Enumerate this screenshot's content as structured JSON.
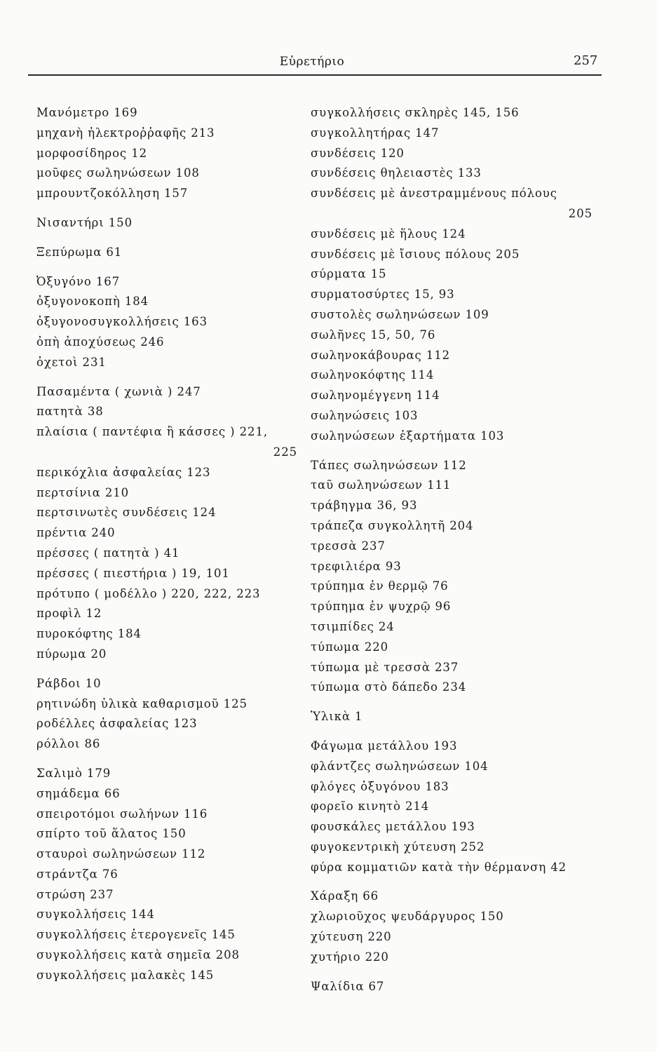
{
  "header": {
    "title": "Εὑρετήριο",
    "page_number": "257"
  },
  "left": [
    {
      "entries": [
        {
          "text": "Μανόμετρο 169"
        },
        {
          "text": "μηχανὴ ἠλεκτροῤῥαφῆς 213"
        },
        {
          "text": "μορφοσίδηρος 12"
        },
        {
          "text": "μοῦφες σωληνώσεων 108"
        },
        {
          "text": "μπρουντζοκόλληση 157"
        }
      ]
    },
    {
      "entries": [
        {
          "text": "Νισαντήρι 150"
        }
      ]
    },
    {
      "entries": [
        {
          "text": "Ξεπύρωμα 61"
        }
      ]
    },
    {
      "entries": [
        {
          "text": "Ὀξυγόνο 167"
        },
        {
          "text": "ὀξυγονοκοπὴ 184"
        },
        {
          "text": "ὀξυγονοσυγκολλήσεις 163"
        },
        {
          "text": "ὀπὴ ἀποχύσεως 246"
        },
        {
          "text": "ὀχετοὶ 231"
        }
      ]
    },
    {
      "entries": [
        {
          "text": "Πασαμέντα ( χωνιὰ ) 247"
        },
        {
          "text": "πατητὰ 38"
        },
        {
          "text": "πλαίσια ( παντέφια ἢ κάσσες ) 221,",
          "wrap": "225"
        },
        {
          "text": "περικόχλια ἀσφαλείας 123"
        },
        {
          "text": "περτσίνια 210"
        },
        {
          "text": "περτσινωτὲς συνδέσεις 124"
        },
        {
          "text": "πρέντια 240"
        },
        {
          "text": "πρέσσες ( πατητὰ ) 41"
        },
        {
          "text": "πρέσσες ( πιεστήρια ) 19, 101"
        },
        {
          "text": "πρότυπο ( μοδέλλο ) 220, 222, 223"
        },
        {
          "text": "προφὶλ 12"
        },
        {
          "text": "πυροκόφτης 184"
        },
        {
          "text": "πύρωμα 20"
        }
      ]
    },
    {
      "entries": [
        {
          "text": "Ράβδοι 10"
        },
        {
          "text": "ρητινώδη ὑλικὰ καθαρισμοῦ 125"
        },
        {
          "text": "ροδέλλες ἀσφαλείας 123"
        },
        {
          "text": "ρόλλοι 86"
        }
      ]
    },
    {
      "entries": [
        {
          "text": "Σαλιμὸ 179"
        },
        {
          "text": "σημάδεμα 66"
        },
        {
          "text": "σπειροτόμοι σωλήνων 116"
        },
        {
          "text": "σπίρτο τοῦ ἅλατος 150"
        },
        {
          "text": "σταυροὶ σωληνώσεων 112"
        },
        {
          "text": "στράντζα 76"
        },
        {
          "text": "στρώση 237"
        },
        {
          "text": "συγκολλήσεις 144"
        },
        {
          "text": "συγκολλήσεις ἑτερογενεῖς 145"
        },
        {
          "text": "συγκολλήσεις κατὰ σημεῖα 208"
        },
        {
          "text": "συγκολλήσεις μαλακὲς 145"
        }
      ]
    }
  ],
  "right": [
    {
      "entries": [
        {
          "text": "συγκολλήσεις σκληρὲς 145, 156"
        },
        {
          "text": "συγκολλητήρας 147"
        },
        {
          "text": "συνδέσεις 120"
        },
        {
          "text": "συνδέσεις θηλειαστὲς 133"
        },
        {
          "text": "συνδέσεις μὲ ἀνεστραμμένους πόλους",
          "wrap": "205"
        },
        {
          "text": "συνδέσεις μὲ ἥλους 124"
        },
        {
          "text": "συνδέσεις μὲ ἴσιους πόλους 205"
        },
        {
          "text": "σύρματα 15"
        },
        {
          "text": "συρματοσύρτες 15, 93"
        },
        {
          "text": "συστολὲς σωληνώσεων 109"
        },
        {
          "text": "σωλῆνες 15, 50, 76"
        },
        {
          "text": "σωληνοκάβουρας 112"
        },
        {
          "text": "σωληνοκόφτης 114"
        },
        {
          "text": "σωληνομέγγενη 114"
        },
        {
          "text": "σωληνώσεις 103"
        },
        {
          "text": "σωληνώσεων ἐξαρτήματα 103"
        }
      ]
    },
    {
      "entries": [
        {
          "text": "Τάπες σωληνώσεων 112"
        },
        {
          "text": "ταῦ σωληνώσεων 111"
        },
        {
          "text": "τράβηγμα 36, 93"
        },
        {
          "text": "τράπεζα συγκολλητῆ 204"
        },
        {
          "text": "τρεσσὰ 237"
        },
        {
          "text": "τρεφιλιέρα 93"
        },
        {
          "text": "τρύπημα ἐν θερμῷ 76"
        },
        {
          "text": "τρύπημα ἐν ψυχρῷ 96"
        },
        {
          "text": "τσιμπίδες 24"
        },
        {
          "text": "τύπωμα 220"
        },
        {
          "text": "τύπωμα μὲ τρεσσὰ 237"
        },
        {
          "text": "τύπωμα στὸ δάπεδο 234"
        }
      ]
    },
    {
      "entries": [
        {
          "text": "Ὑλικὰ 1"
        }
      ]
    },
    {
      "entries": [
        {
          "text": "Φάγωμα μετάλλου 193"
        },
        {
          "text": "φλάντζες σωληνώσεων 104"
        },
        {
          "text": "φλόγες ὀξυγόνου 183"
        },
        {
          "text": "φορεῖο κινητὸ 214"
        },
        {
          "text": "φουσκάλες μετάλλου 193"
        },
        {
          "text": "φυγοκεντρικὴ χύτευση 252"
        },
        {
          "text": "φύρα κομματιῶν κατὰ τὴν θέρμανση 42"
        }
      ]
    },
    {
      "entries": [
        {
          "text": "Χάραξη 66"
        },
        {
          "text": "χλωριοῦχος ψευδάργυρος 150"
        },
        {
          "text": "χύτευση 220"
        },
        {
          "text": "χυτήριο 220"
        }
      ]
    },
    {
      "entries": [
        {
          "text": "Ψαλίδια 67"
        }
      ]
    }
  ]
}
